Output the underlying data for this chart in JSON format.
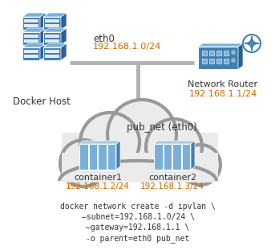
{
  "bg_color": "#ffffff",
  "cloud_stroke": "#999999",
  "cloud_fill": "#ebebeb",
  "blue_dark": "#2a6099",
  "blue_mid": "#4080b0",
  "blue_light": "#7ab0d8",
  "blue_lightest": "#a8cce0",
  "line_color": "#b0b0b0",
  "text_dark": "#333333",
  "orange": "#cc6600",
  "eth0_label": "eth0",
  "subnet_label": "192.168.1.0/24",
  "docker_host_label": "Docker Host",
  "router_label": "Network Router",
  "router_ip": "192.168.1.1/24",
  "pub_net_label": "pub_net (eth0)",
  "c1_label": "container1",
  "c1_ip": "192.168.1.2/24",
  "c2_label": "container2",
  "c2_ip": "192.168.1.3/24",
  "cmd1": "docker network create -d ipvlan \\",
  "cmd2": "–subnet=192.168.1.0/24 \\",
  "cmd3": "–gateway=192.168.1.1 \\",
  "cmd4": "-o parent=eth0 pub_net"
}
